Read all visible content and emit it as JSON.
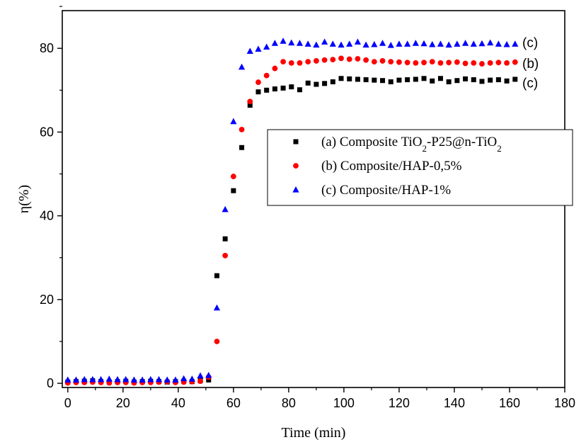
{
  "chart_data": {
    "type": "scatter",
    "xlabel": "Time (min)",
    "ylabel": "η(%)",
    "xlim": [
      -2,
      180
    ],
    "ylim": [
      -1,
      89
    ],
    "x_ticks": [
      0,
      20,
      40,
      60,
      80,
      100,
      120,
      140,
      160,
      180
    ],
    "y_ticks": [
      0,
      20,
      40,
      60,
      80
    ],
    "grid": false,
    "legend_position": "center-right",
    "legend": [
      {
        "prefix": "(a) Composite TiO",
        "sub": "2",
        "middle": "-P25@n-TiO",
        "sub2": "2",
        "marker": "square",
        "color": "#000000"
      },
      {
        "prefix": "(b) Composite/HAP-0,5%",
        "sub": "",
        "middle": "",
        "sub2": "",
        "marker": "circle",
        "color": "#ff0000"
      },
      {
        "prefix": "(c) Composite/HAP-1%",
        "sub": "",
        "middle": "",
        "sub2": "",
        "marker": "triangle",
        "color": "#0000ff"
      }
    ],
    "annotations": [
      {
        "text": "(c)",
        "y": 81.5
      },
      {
        "text": "(b)",
        "y": 76.5
      },
      {
        "text": "(c)",
        "y": 71.8
      }
    ],
    "series": [
      {
        "name": "(a) Composite TiO2-P25@n-TiO2",
        "marker": "square",
        "color": "#000000",
        "x": [
          0,
          3,
          6,
          9,
          12,
          15,
          18,
          21,
          24,
          27,
          30,
          33,
          36,
          39,
          42,
          45,
          48,
          51,
          54,
          57,
          60,
          63,
          66,
          69,
          72,
          75,
          78,
          81,
          84,
          87,
          90,
          93,
          96,
          99,
          102,
          105,
          108,
          111,
          114,
          117,
          120,
          123,
          126,
          129,
          132,
          135,
          138,
          141,
          144,
          147,
          150,
          153,
          156,
          159,
          162
        ],
        "y": [
          0.3,
          0.4,
          0.5,
          0.6,
          0.4,
          0.3,
          0.4,
          0.5,
          0.3,
          0.4,
          0.5,
          0.4,
          0.3,
          0.4,
          0.5,
          0.4,
          0.6,
          0.8,
          25.7,
          34.5,
          46.0,
          56.3,
          66.4,
          69.6,
          70.0,
          70.3,
          70.5,
          70.8,
          70.1,
          71.7,
          71.4,
          71.6,
          72.0,
          72.8,
          72.7,
          72.6,
          72.5,
          72.4,
          72.3,
          72.0,
          72.4,
          72.5,
          72.6,
          72.8,
          72.2,
          72.8,
          72.0,
          72.3,
          72.7,
          72.5,
          72.1,
          72.4,
          72.5,
          72.2,
          72.6
        ]
      },
      {
        "name": "(b) Composite/HAP-0,5%",
        "marker": "circle",
        "color": "#ff0000",
        "x": [
          0,
          3,
          6,
          9,
          12,
          15,
          18,
          21,
          24,
          27,
          30,
          33,
          36,
          39,
          42,
          45,
          48,
          51,
          54,
          57,
          60,
          63,
          66,
          69,
          72,
          75,
          78,
          81,
          84,
          87,
          90,
          93,
          96,
          99,
          102,
          105,
          108,
          111,
          114,
          117,
          120,
          123,
          126,
          129,
          132,
          135,
          138,
          141,
          144,
          147,
          150,
          153,
          156,
          159,
          162
        ],
        "y": [
          0.1,
          0.2,
          0.2,
          0.3,
          0.2,
          0.1,
          0.2,
          0.2,
          0.1,
          0.2,
          0.2,
          0.3,
          0.4,
          0.2,
          0.3,
          0.4,
          0.5,
          1.5,
          10.0,
          30.5,
          49.4,
          60.6,
          67.3,
          71.9,
          73.5,
          75.2,
          76.8,
          76.5,
          76.5,
          76.8,
          77.0,
          77.2,
          77.3,
          77.6,
          77.4,
          77.5,
          77.2,
          76.8,
          77.0,
          76.8,
          76.7,
          76.6,
          76.5,
          76.6,
          76.8,
          76.5,
          76.6,
          76.7,
          76.4,
          76.5,
          76.3,
          76.5,
          76.6,
          76.5,
          76.7
        ]
      },
      {
        "name": "(c) Composite/HAP-1%",
        "marker": "triangle",
        "color": "#0000ff",
        "x": [
          0,
          3,
          6,
          9,
          12,
          15,
          18,
          21,
          24,
          27,
          30,
          33,
          36,
          39,
          42,
          45,
          48,
          51,
          54,
          57,
          60,
          63,
          66,
          69,
          72,
          75,
          78,
          81,
          84,
          87,
          90,
          93,
          96,
          99,
          102,
          105,
          108,
          111,
          114,
          117,
          120,
          123,
          126,
          129,
          132,
          135,
          138,
          141,
          144,
          147,
          150,
          153,
          156,
          159,
          162
        ],
        "y": [
          0.8,
          0.8,
          0.9,
          0.9,
          0.9,
          1.0,
          0.9,
          0.9,
          0.8,
          0.8,
          0.9,
          0.9,
          0.8,
          0.8,
          1.1,
          1.0,
          1.8,
          1.9,
          18.0,
          41.5,
          62.5,
          75.5,
          79.3,
          79.8,
          80.3,
          81.2,
          81.7,
          81.3,
          81.2,
          81.0,
          80.8,
          81.5,
          81.0,
          80.8,
          81.0,
          81.5,
          80.8,
          80.9,
          81.2,
          80.7,
          81.0,
          81.0,
          81.2,
          81.1,
          80.9,
          81.0,
          80.8,
          81.0,
          81.2,
          81.0,
          81.1,
          81.3,
          81.0,
          80.9,
          81.0
        ]
      }
    ]
  }
}
